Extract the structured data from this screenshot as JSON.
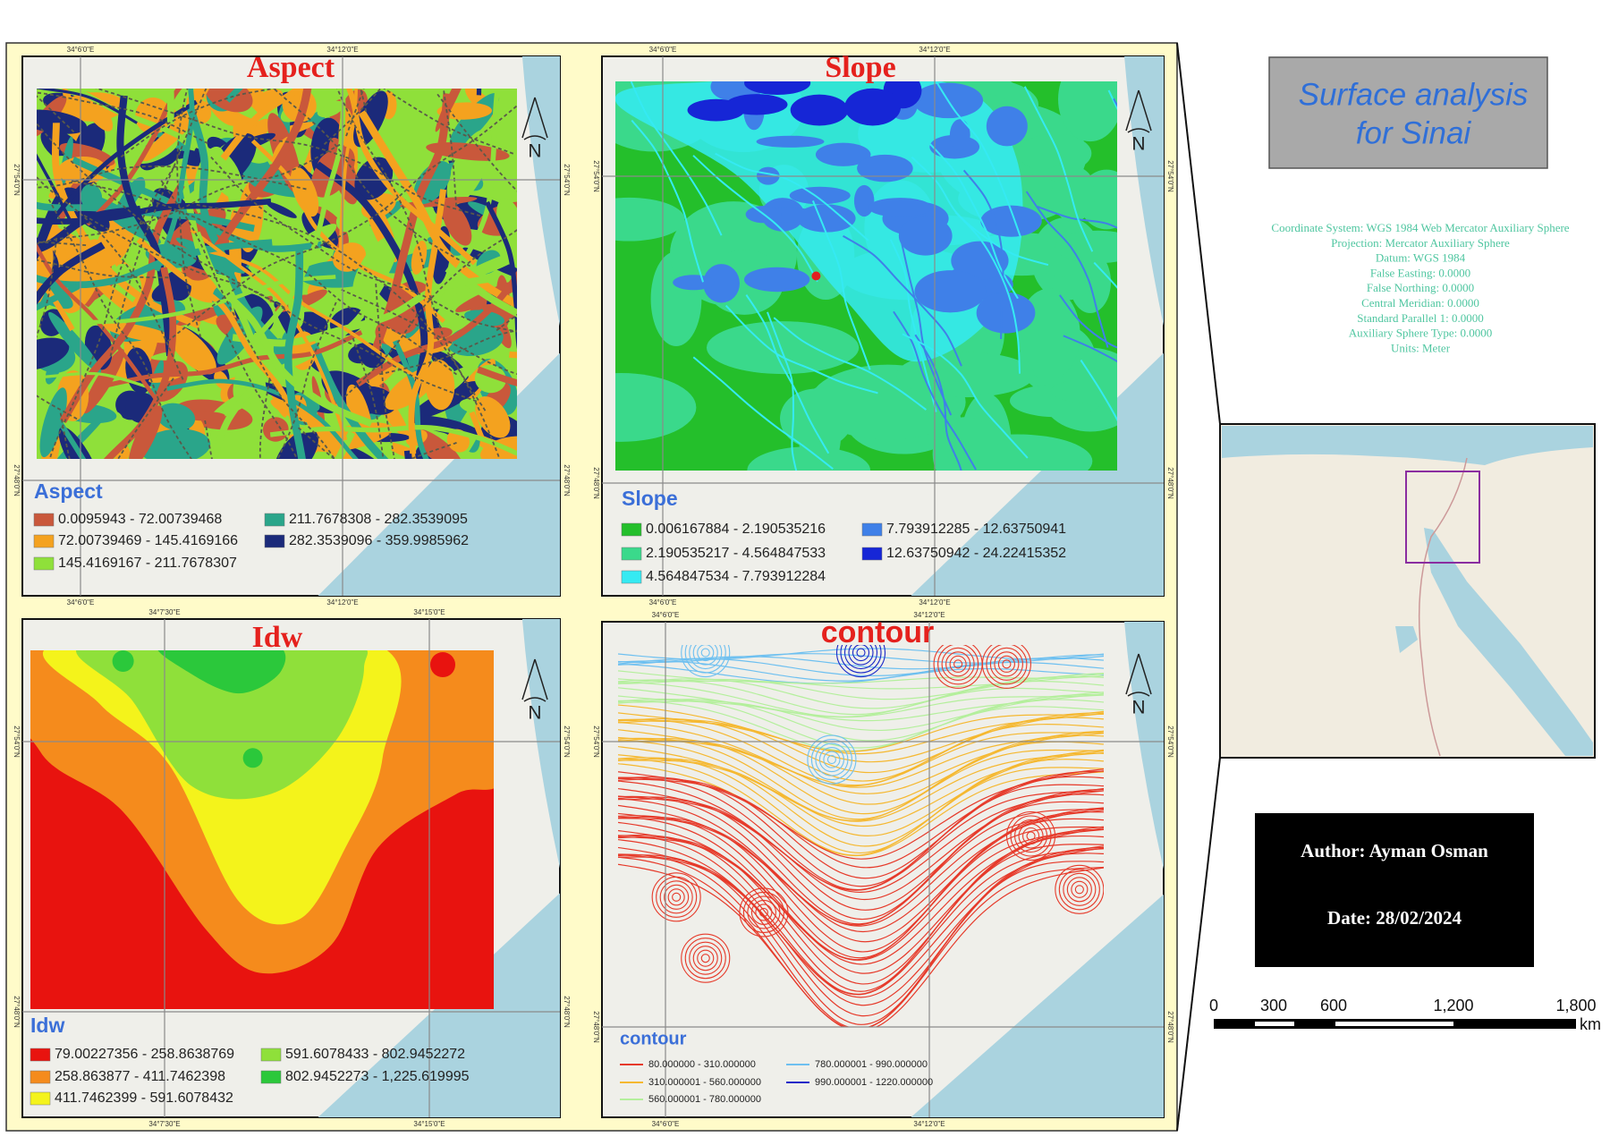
{
  "title_lines": [
    "Surface analysis",
    "for Sinai"
  ],
  "projection_info": [
    "Coordinate System: WGS 1984 Web Mercator Auxiliary Sphere",
    "Projection: Mercator Auxiliary Sphere",
    "Datum: WGS 1984",
    "False Easting: 0.0000",
    "False Northing: 0.0000",
    "Central Meridian: 0.0000",
    "Standard Parallel 1: 0.0000",
    "Auxiliary Sphere Type: 0.0000",
    "Units: Meter"
  ],
  "author": "Author: Ayman Osman",
  "date": "Date: 28/02/2024",
  "north_label": "N",
  "scale_bar": {
    "labels": [
      "0",
      "300",
      "600",
      "1,200",
      "1,800"
    ],
    "unit": "km"
  },
  "maps": [
    {
      "title": "Aspect",
      "legend_title": "Aspect",
      "legend_style": "swatch",
      "top_labels": [
        "34°6'0\"E",
        "34°12'0\"E"
      ],
      "side_labels": [
        "27°54'0\"N",
        "27°48'0\"N"
      ],
      "legend": [
        {
          "label": "0.0095943 - 72.00739468",
          "color": "#c9583b"
        },
        {
          "label": "72.00739469 - 145.4169166",
          "color": "#f4a21f"
        },
        {
          "label": "145.4169167 - 211.7678307",
          "color": "#8fe03a"
        },
        {
          "label": "211.7678308 - 282.3539095",
          "color": "#2aa58a"
        },
        {
          "label": "282.3539096 - 359.9985962",
          "color": "#1b2a7a"
        }
      ]
    },
    {
      "title": "Slope",
      "legend_title": "Slope",
      "legend_style": "swatch",
      "top_labels": [
        "34°6'0\"E",
        "34°12'0\"E"
      ],
      "side_labels": [
        "27°54'0\"N",
        "27°48'0\"N"
      ],
      "legend": [
        {
          "label": "0.006167884 - 2.190535216",
          "color": "#24bf2b"
        },
        {
          "label": "2.190535217 - 4.564847533",
          "color": "#3ad98b"
        },
        {
          "label": "4.564847534 - 7.793912284",
          "color": "#35eaf2"
        },
        {
          "label": "7.793912285 - 12.63750941",
          "color": "#3f80e8"
        },
        {
          "label": "12.63750942 - 24.22415352",
          "color": "#1626d6"
        }
      ]
    },
    {
      "title": "Idw",
      "legend_title": "Idw",
      "legend_style": "swatch",
      "top_labels": [
        "34°7'30\"E",
        "34°15'0\"E"
      ],
      "side_labels": [
        "27°54'0\"N",
        "27°48'0\"N"
      ],
      "legend": [
        {
          "label": "79.00227356 - 258.8638769",
          "color": "#e8130f"
        },
        {
          "label": "258.863877 - 411.7462398",
          "color": "#f58b1c"
        },
        {
          "label": "411.7462399 - 591.6078432",
          "color": "#f4f31b"
        },
        {
          "label": "591.6078433 - 802.9452272",
          "color": "#8fe03a"
        },
        {
          "label": "802.9452273 - 1,225.619995",
          "color": "#2bc83b"
        }
      ]
    },
    {
      "title": "contour",
      "legend_title": "contour",
      "legend_style": "line",
      "top_labels": [
        "34°6'0\"E",
        "34°12'0\"E"
      ],
      "side_labels": [
        "27°54'0\"N",
        "27°48'0\"N"
      ],
      "legend": [
        {
          "label": "80.000000 - 310.000000",
          "color": "#e63a2a"
        },
        {
          "label": "310.000001 - 560.000000",
          "color": "#f5b830"
        },
        {
          "label": "560.000001 - 780.000000",
          "color": "#b4ef9c"
        },
        {
          "label": "780.000001 - 990.000000",
          "color": "#6ec0f0"
        },
        {
          "label": "990.000001 - 1220.000000",
          "color": "#1a28c8"
        }
      ]
    }
  ]
}
